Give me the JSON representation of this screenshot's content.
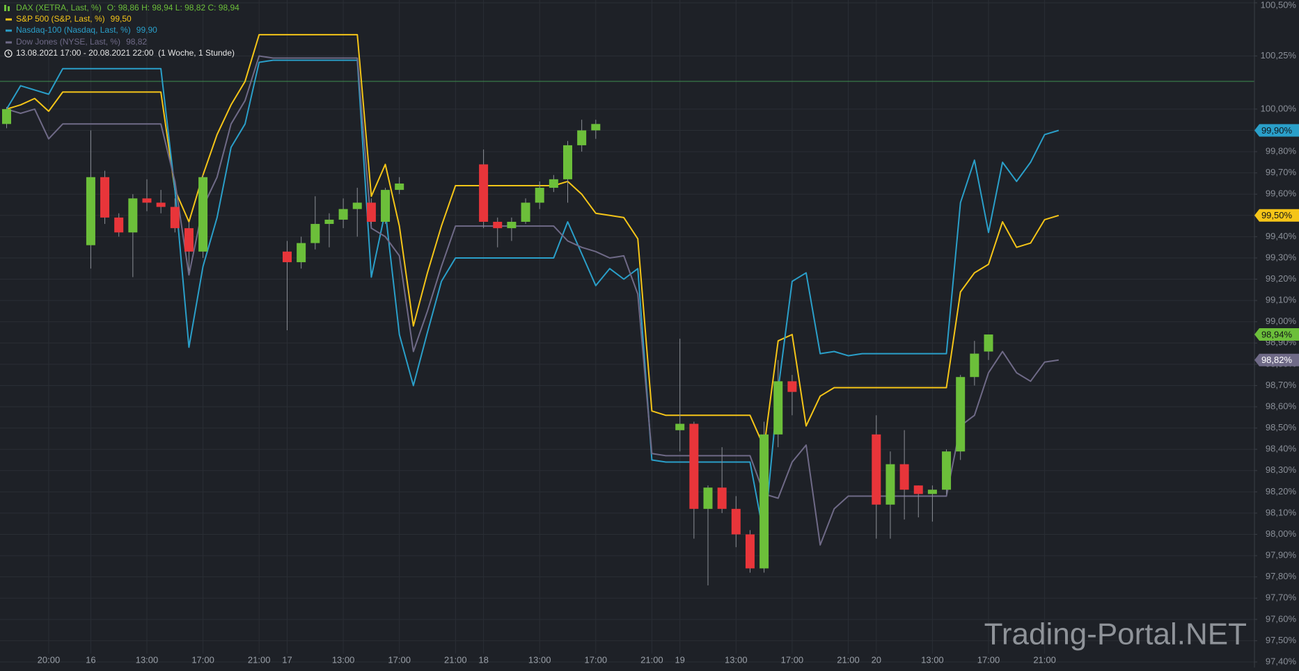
{
  "chart_data": {
    "type": "candlestick",
    "range_text": "13.08.2021 17:00 - 20.08.2021 22:00  (1 Woche, 1 Stunde)",
    "watermark": "Trading-Portal.NET",
    "categories": [
      null,
      null,
      null,
      "20:00",
      null,
      null,
      "16",
      null,
      null,
      null,
      "13:00",
      null,
      null,
      null,
      "17:00",
      null,
      null,
      null,
      "21:00",
      null,
      "17",
      null,
      null,
      null,
      "13:00",
      null,
      null,
      null,
      "17:00",
      null,
      null,
      null,
      "21:00",
      null,
      "18",
      null,
      null,
      null,
      "13:00",
      null,
      null,
      null,
      "17:00",
      null,
      null,
      null,
      "21:00",
      null,
      "19",
      null,
      null,
      null,
      "13:00",
      null,
      null,
      null,
      "17:00",
      null,
      null,
      null,
      "21:00",
      null,
      "20",
      null,
      null,
      null,
      "13:00",
      null,
      null,
      null,
      "17:00",
      null,
      null,
      null,
      "21:00",
      null
    ],
    "ylim": [
      97.4,
      100.5
    ],
    "yticks": [
      {
        "value": 100.5,
        "label": "100,50%"
      },
      {
        "value": 100.25,
        "label": "100,25%"
      },
      {
        "value": 100.0,
        "label": "100,00%"
      },
      {
        "value": 99.9,
        "label": "99,90%"
      },
      {
        "value": 99.8,
        "label": "99,80%"
      },
      {
        "value": 99.7,
        "label": "99,70%"
      },
      {
        "value": 99.6,
        "label": "99,60%"
      },
      {
        "value": 99.5,
        "label": "99,50%"
      },
      {
        "value": 99.4,
        "label": "99,40%"
      },
      {
        "value": 99.3,
        "label": "99,30%"
      },
      {
        "value": 99.2,
        "label": "99,20%"
      },
      {
        "value": 99.1,
        "label": "99,10%"
      },
      {
        "value": 99.0,
        "label": "99,00%"
      },
      {
        "value": 98.9,
        "label": "98,90%"
      },
      {
        "value": 98.8,
        "label": "98,80%"
      },
      {
        "value": 98.7,
        "label": "98,70%"
      },
      {
        "value": 98.6,
        "label": "98,60%"
      },
      {
        "value": 98.5,
        "label": "98,50%"
      },
      {
        "value": 98.4,
        "label": "98,40%"
      },
      {
        "value": 98.3,
        "label": "98,30%"
      },
      {
        "value": 98.2,
        "label": "98,20%"
      },
      {
        "value": 98.1,
        "label": "98,10%"
      },
      {
        "value": 98.0,
        "label": "98,00%"
      },
      {
        "value": 97.9,
        "label": "97,90%"
      },
      {
        "value": 97.8,
        "label": "97,80%"
      },
      {
        "value": 97.7,
        "label": "97,70%"
      },
      {
        "value": 97.6,
        "label": "97,60%"
      },
      {
        "value": 97.5,
        "label": "97,50%"
      },
      {
        "value": 97.4,
        "label": "97,40%"
      }
    ],
    "grid": true,
    "series": [
      {
        "name": "DAX (XETRA, Last, %)",
        "type": "candlestick",
        "legend_value": "O: 98,86  H: 98,94  L: 98,82  C: 98,94",
        "color": "#6cbf3a",
        "down_color": "#e8353a",
        "badge": "98,94%",
        "open": [
          99.93,
          null,
          null,
          null,
          null,
          null,
          99.36,
          99.68,
          99.49,
          99.42,
          99.58,
          99.56,
          99.54,
          99.44,
          99.33,
          null,
          null,
          null,
          null,
          null,
          99.33,
          99.28,
          99.37,
          99.46,
          99.48,
          99.53,
          99.56,
          99.47,
          99.62,
          null,
          null,
          null,
          null,
          null,
          99.74,
          99.47,
          99.44,
          99.47,
          99.56,
          99.63,
          99.67,
          99.83,
          99.9,
          null,
          null,
          null,
          null,
          null,
          98.49,
          98.52,
          98.12,
          98.22,
          98.12,
          98.0,
          97.84,
          98.47,
          98.72,
          null,
          null,
          null,
          null,
          null,
          98.47,
          98.14,
          98.33,
          98.23,
          98.19,
          98.21,
          98.39,
          98.74,
          98.86,
          null,
          null,
          null,
          null,
          null
        ],
        "high": [
          100.01,
          null,
          null,
          null,
          null,
          null,
          99.9,
          99.71,
          99.51,
          99.6,
          99.67,
          99.62,
          99.58,
          99.47,
          99.69,
          null,
          null,
          null,
          null,
          null,
          99.38,
          99.4,
          99.59,
          99.51,
          99.58,
          99.63,
          99.58,
          99.63,
          99.68,
          null,
          null,
          null,
          null,
          null,
          99.81,
          99.49,
          99.49,
          99.58,
          99.66,
          99.69,
          99.85,
          99.95,
          99.95,
          null,
          null,
          null,
          null,
          null,
          98.92,
          98.53,
          98.23,
          98.41,
          98.18,
          98.02,
          98.53,
          98.82,
          98.75,
          null,
          null,
          null,
          null,
          null,
          98.56,
          98.39,
          98.49,
          98.23,
          98.23,
          98.4,
          98.75,
          98.91,
          98.94,
          null,
          null,
          null,
          null,
          null
        ],
        "low": [
          99.91,
          null,
          null,
          null,
          null,
          null,
          99.25,
          99.46,
          99.4,
          99.21,
          99.52,
          99.51,
          99.42,
          99.24,
          99.3,
          null,
          null,
          null,
          null,
          null,
          98.96,
          99.25,
          99.34,
          99.35,
          99.44,
          99.4,
          99.46,
          99.46,
          99.6,
          null,
          null,
          null,
          null,
          null,
          99.44,
          99.35,
          99.38,
          99.46,
          99.53,
          99.61,
          99.56,
          99.8,
          99.86,
          null,
          null,
          null,
          null,
          null,
          98.39,
          97.98,
          97.76,
          98.1,
          97.94,
          97.82,
          97.82,
          98.41,
          98.56,
          null,
          null,
          null,
          null,
          null,
          97.98,
          97.98,
          98.07,
          98.08,
          98.06,
          98.19,
          98.35,
          98.7,
          98.82,
          null,
          null,
          null,
          null,
          null
        ],
        "close": [
          100.0,
          null,
          null,
          null,
          null,
          null,
          99.68,
          99.49,
          99.42,
          99.58,
          99.56,
          99.54,
          99.44,
          99.33,
          99.68,
          null,
          null,
          null,
          null,
          null,
          99.28,
          99.37,
          99.46,
          99.48,
          99.53,
          99.56,
          99.47,
          99.62,
          99.65,
          null,
          null,
          null,
          null,
          null,
          99.47,
          99.44,
          99.47,
          99.56,
          99.63,
          99.67,
          99.83,
          99.9,
          99.93,
          null,
          null,
          null,
          null,
          null,
          98.52,
          98.12,
          98.22,
          98.12,
          98.0,
          97.84,
          98.47,
          98.72,
          98.67,
          null,
          null,
          null,
          null,
          null,
          98.14,
          98.33,
          98.21,
          98.19,
          98.21,
          98.39,
          98.74,
          98.85,
          98.94,
          null,
          null,
          null,
          null,
          null
        ]
      },
      {
        "name": "S&P 500 (S&P, Last, %)",
        "type": "line",
        "legend_value": "99,50",
        "color": "#f5c518",
        "badge": "99,50%",
        "values": [
          100.0,
          100.02,
          100.05,
          99.99,
          100.08,
          100.08,
          100.08,
          100.08,
          100.08,
          100.08,
          100.08,
          100.08,
          99.62,
          99.47,
          99.69,
          99.88,
          100.02,
          100.13,
          100.35,
          100.35,
          100.35,
          100.35,
          100.35,
          100.35,
          100.35,
          100.35,
          99.59,
          99.74,
          99.45,
          98.98,
          99.23,
          99.45,
          99.64,
          99.64,
          99.64,
          99.64,
          99.64,
          99.64,
          99.64,
          99.64,
          99.66,
          99.6,
          99.51,
          99.5,
          99.49,
          99.39,
          98.58,
          98.56,
          98.56,
          98.56,
          98.56,
          98.56,
          98.56,
          98.56,
          98.41,
          98.91,
          98.94,
          98.51,
          98.65,
          98.69,
          98.69,
          98.69,
          98.69,
          98.69,
          98.69,
          98.69,
          98.69,
          98.69,
          99.14,
          99.23,
          99.27,
          99.47,
          99.35,
          99.37,
          99.48,
          99.5
        ]
      },
      {
        "name": "Nasdaq-100 (Nasdaq, Last, %)",
        "type": "line",
        "legend_value": "99,90",
        "color": "#2a9fc9",
        "badge": "99,90%",
        "values": [
          100.0,
          100.11,
          100.09,
          100.07,
          100.19,
          100.19,
          100.19,
          100.19,
          100.19,
          100.19,
          100.19,
          100.19,
          99.62,
          98.88,
          99.26,
          99.49,
          99.82,
          99.93,
          100.22,
          100.23,
          100.23,
          100.23,
          100.23,
          100.23,
          100.23,
          100.23,
          99.21,
          99.52,
          98.94,
          98.7,
          98.95,
          99.19,
          99.3,
          99.3,
          99.3,
          99.3,
          99.3,
          99.3,
          99.3,
          99.3,
          99.47,
          99.32,
          99.17,
          99.25,
          99.2,
          99.25,
          98.35,
          98.34,
          98.34,
          98.34,
          98.34,
          98.34,
          98.34,
          98.34,
          97.99,
          98.68,
          99.19,
          99.23,
          98.85,
          98.86,
          98.84,
          98.85,
          98.85,
          98.85,
          98.85,
          98.85,
          98.85,
          98.85,
          99.56,
          99.76,
          99.42,
          99.75,
          99.66,
          99.75,
          99.88,
          99.9
        ]
      },
      {
        "name": "Dow Jones (NYSE, Last, %)",
        "type": "line",
        "legend_value": "98,82",
        "color": "#6f6a87",
        "badge": "98,82%",
        "values": [
          100.0,
          99.98,
          100.0,
          99.86,
          99.93,
          99.93,
          99.93,
          99.93,
          99.93,
          99.93,
          99.93,
          99.93,
          99.66,
          99.22,
          99.54,
          99.68,
          99.93,
          100.04,
          100.25,
          100.24,
          100.24,
          100.24,
          100.24,
          100.24,
          100.24,
          100.24,
          99.44,
          99.4,
          99.31,
          98.86,
          99.05,
          99.26,
          99.45,
          99.45,
          99.45,
          99.45,
          99.45,
          99.45,
          99.45,
          99.45,
          99.38,
          99.35,
          99.33,
          99.3,
          99.31,
          99.13,
          98.38,
          98.37,
          98.37,
          98.37,
          98.37,
          98.37,
          98.37,
          98.37,
          98.19,
          98.17,
          98.34,
          98.42,
          97.95,
          98.12,
          98.18,
          98.18,
          98.18,
          98.18,
          98.18,
          98.18,
          98.18,
          98.18,
          98.51,
          98.56,
          98.76,
          98.86,
          98.76,
          98.72,
          98.81,
          98.82
        ]
      }
    ]
  }
}
